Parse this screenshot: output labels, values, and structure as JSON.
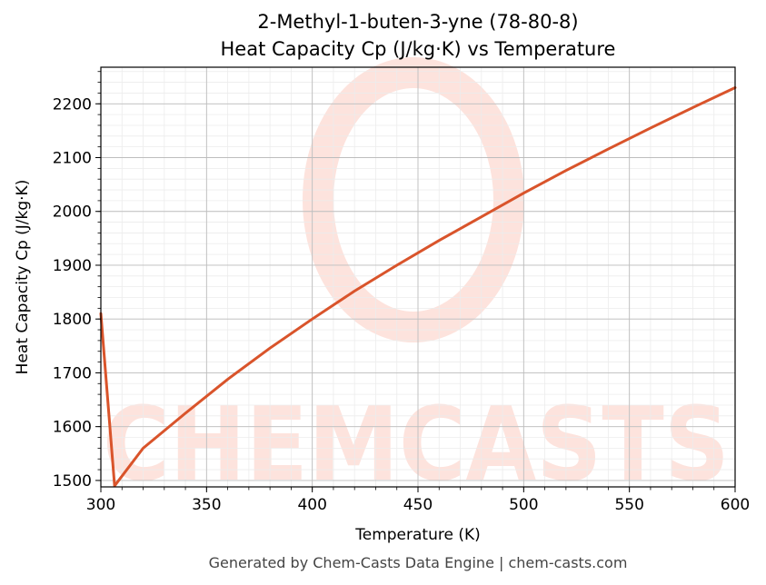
{
  "chart_data": {
    "type": "line",
    "title": "2-Methyl-1-buten-3-yne (78-80-8)",
    "subtitle": "Heat Capacity Cp (J/kg·K) vs Temperature",
    "xlabel": "Temperature (K)",
    "ylabel": "Heat Capacity Cp (J/kg·K)",
    "xlim": [
      300,
      600
    ],
    "ylim": [
      1488,
      2268
    ],
    "xticks": [
      300,
      350,
      400,
      450,
      500,
      550,
      600
    ],
    "yticks": [
      1500,
      1600,
      1700,
      1800,
      1900,
      2000,
      2100,
      2200
    ],
    "grid": true,
    "legend": "none",
    "series": [
      {
        "color": "#d9542b",
        "x": [
          300,
          306.5,
          320,
          340,
          360,
          380,
          400,
          420,
          440,
          460,
          480,
          500,
          520,
          540,
          560,
          580,
          600
        ],
        "y": [
          1810,
          1490,
          1560,
          1625,
          1688,
          1746,
          1800,
          1852,
          1900,
          1946,
          1990,
          2034,
          2076,
          2116,
          2155,
          2193,
          2230
        ]
      }
    ]
  },
  "watermark": {
    "text": "CHEMCASTS",
    "color": "#fde3dd"
  },
  "footer": {
    "text": "Generated by Chem-Casts Data Engine | chem-casts.com"
  }
}
